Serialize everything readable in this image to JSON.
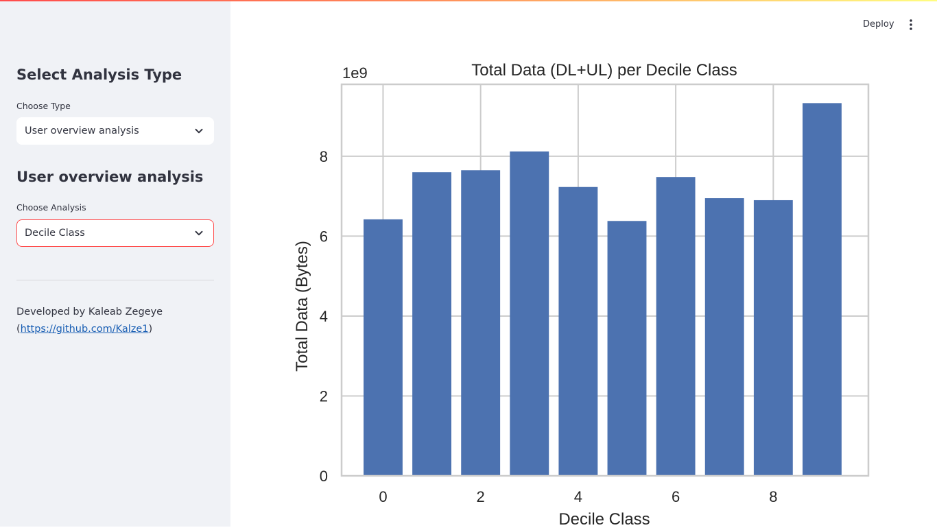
{
  "sidebar": {
    "analysis_type": {
      "heading": "Select Analysis Type",
      "label": "Choose Type",
      "selected": "User overview analysis"
    },
    "analysis": {
      "heading": "User overview analysis",
      "label": "Choose Analysis",
      "selected": "Decile Class"
    },
    "footer": {
      "developed_by": "Developed by Kaleab Zegeye",
      "open_paren": "(",
      "link_text": "https://github.com/Kalze1",
      "close_paren": ")"
    }
  },
  "header": {
    "deploy_label": "Deploy",
    "menu_icon": "vertical-ellipsis-icon"
  },
  "colors": {
    "accent": "#ff4b4b",
    "bar": "#4c72b0",
    "sidebar_bg": "#f0f2f6",
    "link": "#1a5fb4"
  },
  "chart_data": {
    "type": "bar",
    "title": "Total Data (DL+UL) per Decile Class",
    "xlabel": "Decile Class",
    "ylabel": "Total Data (Bytes)",
    "offset_label": "1e9",
    "x": [
      0,
      1,
      2,
      3,
      4,
      5,
      6,
      7,
      8,
      9
    ],
    "values": [
      6.42,
      7.6,
      7.65,
      8.12,
      7.23,
      6.38,
      7.48,
      6.95,
      6.9,
      9.33
    ],
    "value_scale": 1000000000,
    "xticks": [
      0,
      2,
      4,
      6,
      8
    ],
    "yticks": [
      0,
      2,
      4,
      6,
      8
    ],
    "xlim": [
      -0.85,
      9.95
    ],
    "ylim": [
      0,
      9.8
    ],
    "grid": true
  }
}
